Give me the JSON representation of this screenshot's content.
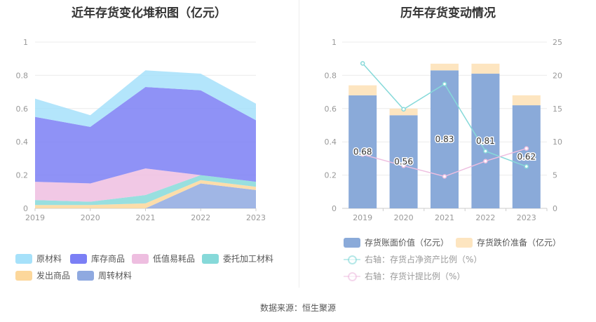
{
  "left_title": "近年存货变化堆积图（亿元）",
  "right_title": "历年存货变动情况",
  "footer": "数据来源：恒生聚源",
  "left_legend": [
    {
      "label": "原材料",
      "color": "#a6e1fa"
    },
    {
      "label": "库存商品",
      "color": "#7b7ff5"
    },
    {
      "label": "低值易耗品",
      "color": "#eebee0"
    },
    {
      "label": "委托加工材料",
      "color": "#86d9d9"
    },
    {
      "label": "发出商品",
      "color": "#fcd79b"
    },
    {
      "label": "周转材料",
      "color": "#8fa9e0"
    }
  ],
  "right_legend": [
    {
      "label": "存货账面价值（亿元）",
      "color": "#8aaad9",
      "kind": "bar"
    },
    {
      "label": "存货跌价准备（亿元）",
      "color": "#fde5c0",
      "kind": "bar"
    },
    {
      "label": "右轴：存货占净资产比例（%）",
      "color": "#86d9d9",
      "kind": "line"
    },
    {
      "label": "右轴：存货计提比例（%）",
      "color": "#eebee0",
      "kind": "line"
    }
  ],
  "chart_data": [
    {
      "type": "area",
      "stacked": true,
      "title": "近年存货变化堆积图（亿元）",
      "categories": [
        "2019",
        "2020",
        "2021",
        "2022",
        "2023"
      ],
      "ylim": [
        0,
        1
      ],
      "yticks": [
        "0",
        "0.2",
        "0.4",
        "0.6",
        "0.8",
        "1"
      ],
      "series": [
        {
          "name": "周转材料",
          "color": "#8fa9e0",
          "values": [
            0.0,
            0.0,
            0.0,
            0.15,
            0.11
          ]
        },
        {
          "name": "发出商品",
          "color": "#fcd79b",
          "values": [
            0.02,
            0.02,
            0.03,
            0.02,
            0.02
          ]
        },
        {
          "name": "委托加工材料",
          "color": "#86d9d9",
          "values": [
            0.03,
            0.02,
            0.05,
            0.03,
            0.03
          ]
        },
        {
          "name": "低值易耗品",
          "color": "#eebee0",
          "values": [
            0.11,
            0.11,
            0.16,
            0.0,
            0.0
          ]
        },
        {
          "name": "库存商品",
          "color": "#7b7ff5",
          "values": [
            0.39,
            0.34,
            0.49,
            0.51,
            0.37
          ]
        },
        {
          "name": "原材料",
          "color": "#a6e1fa",
          "values": [
            0.11,
            0.07,
            0.1,
            0.1,
            0.1
          ]
        }
      ]
    },
    {
      "type": "bar",
      "stacked": true,
      "title": "历年存货变动情况",
      "categories": [
        "2019",
        "2020",
        "2021",
        "2022",
        "2023"
      ],
      "ylim": [
        0,
        1
      ],
      "yticks": [
        "0",
        "0.2",
        "0.4",
        "0.6",
        "0.8",
        "1"
      ],
      "y2lim": [
        0,
        25
      ],
      "y2ticks": [
        "0",
        "5",
        "10",
        "15",
        "20",
        "25"
      ],
      "series": [
        {
          "name": "存货账面价值（亿元）",
          "color": "#8aaad9",
          "values": [
            0.68,
            0.56,
            0.83,
            0.81,
            0.62
          ],
          "labels": [
            "0.68",
            "0.56",
            "0.83",
            "0.81",
            "0.62"
          ]
        },
        {
          "name": "存货跌价准备（亿元）",
          "color": "#fde5c0",
          "values": [
            0.06,
            0.04,
            0.04,
            0.06,
            0.06
          ]
        }
      ],
      "lines": [
        {
          "name": "右轴：存货占净资产比例（%）",
          "color": "#86d9d9",
          "values": [
            21.8,
            14.9,
            18.7,
            8.6,
            6.3
          ]
        },
        {
          "name": "右轴：存货计提比例（%）",
          "color": "#eebee0",
          "values": [
            8.1,
            6.4,
            4.8,
            7.1,
            9.0
          ]
        }
      ]
    }
  ]
}
